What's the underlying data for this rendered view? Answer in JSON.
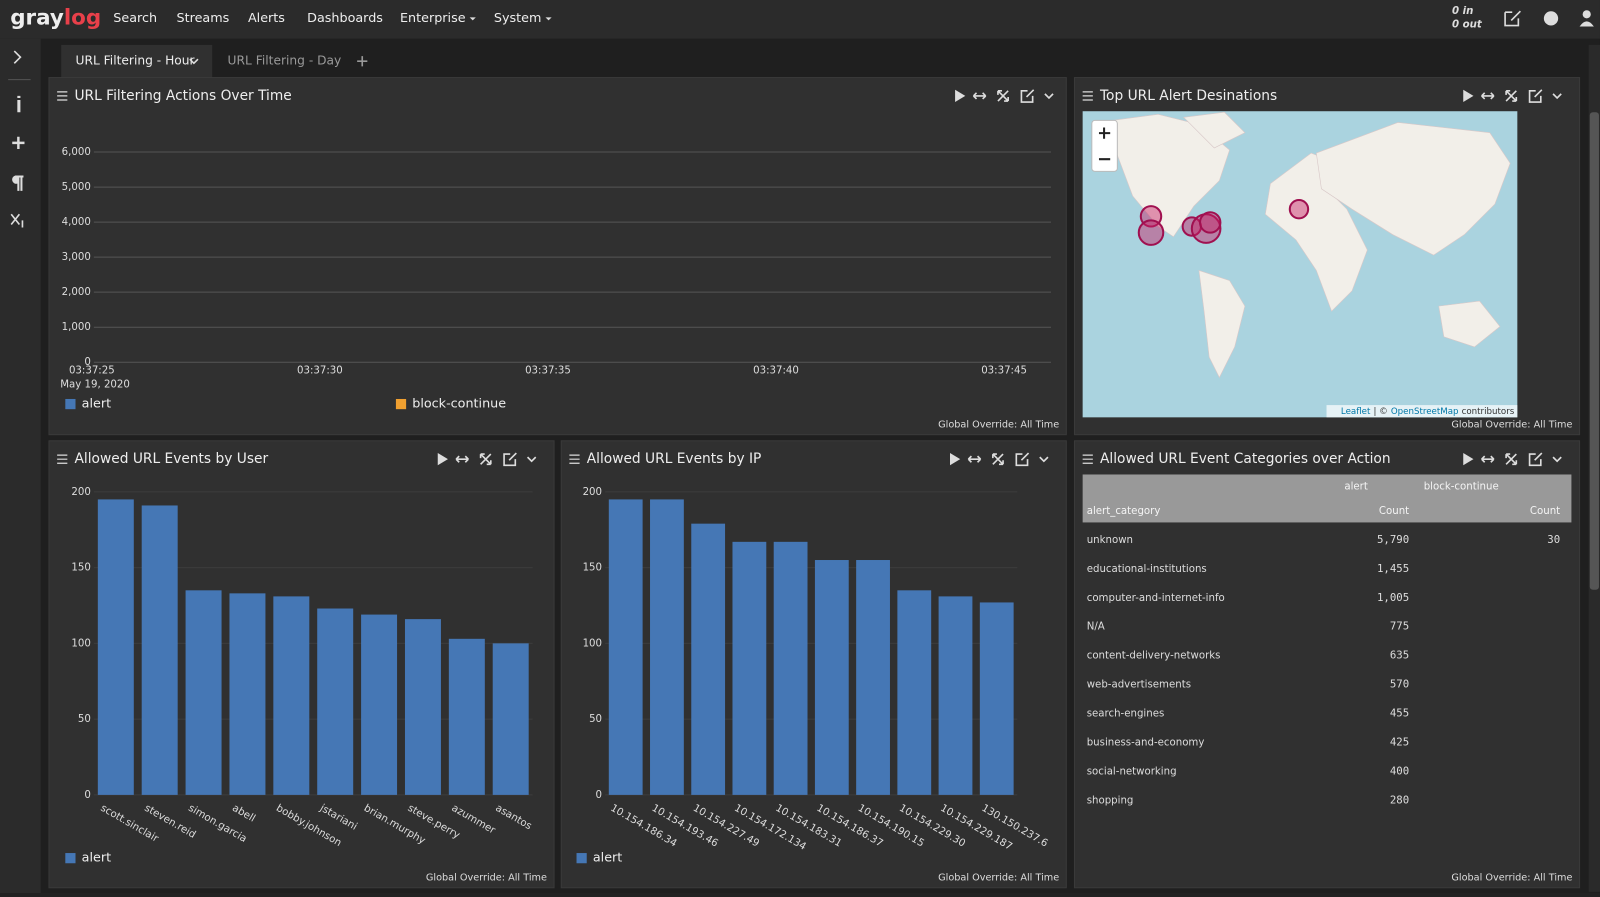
{
  "nav": {
    "logo_a": "gray",
    "logo_b": "log",
    "items": [
      "Search",
      "Streams",
      "Alerts",
      "Dashboards",
      "Enterprise",
      "System"
    ],
    "throughput_in": "0 in",
    "throughput_out": "0 out"
  },
  "tabs": [
    "URL Filtering - Hour",
    "URL Filtering - Day"
  ],
  "chart_data": [
    {
      "type": "line",
      "title": "URL Filtering Actions Over Time",
      "categories": [
        "03:37:25",
        "03:37:30",
        "03:37:35",
        "03:37:40",
        "03:37:45"
      ],
      "date": "May 19, 2020",
      "ylim": [
        0,
        6000
      ],
      "yticks": [
        0,
        {
          "value": 1000,
          "label": "1,000"
        },
        {
          "value": 2000,
          "label": "2,000"
        },
        {
          "value": 3000,
          "label": "3,000"
        },
        {
          "value": 4000,
          "label": "4,000"
        },
        {
          "value": 5000,
          "label": "5,000"
        },
        {
          "value": 6000,
          "label": "6,000"
        }
      ],
      "grid": true,
      "series": [
        {
          "name": "alert",
          "color": "#4577b5"
        },
        {
          "name": "block-continue",
          "color": "#f0a030"
        }
      ],
      "footer": "Global Override: All Time"
    },
    {
      "type": "bar",
      "title": "Allowed URL Events by User",
      "categories": [
        "scott.sinclair",
        "steven.reid",
        "simon.garcia",
        "abell",
        "bobby.johnson",
        "jstariani",
        "brian.murphy",
        "steve.perry",
        "azummer",
        "asantos"
      ],
      "series": [
        {
          "name": "alert",
          "color": "#4577b5",
          "values": [
            195,
            191,
            135,
            133,
            131,
            123,
            119,
            116,
            103,
            100
          ]
        }
      ],
      "ylim": [
        0,
        200
      ],
      "yticks": [
        0,
        50,
        100,
        150,
        200
      ],
      "grid": true,
      "footer": "Global Override: All Time"
    },
    {
      "type": "bar",
      "title": "Allowed URL Events by IP",
      "categories": [
        "10.154.186.34",
        "10.154.193.46",
        "10.154.227.49",
        "10.154.172.134",
        "10.154.183.31",
        "10.154.186.37",
        "10.154.190.15",
        "10.154.229.30",
        "10.154.229.187",
        "130.150.237.6"
      ],
      "series": [
        {
          "name": "alert",
          "color": "#4577b5",
          "values": [
            195,
            195,
            179,
            167,
            167,
            155,
            155,
            135,
            131,
            127
          ]
        }
      ],
      "ylim": [
        0,
        200
      ],
      "yticks": [
        0,
        50,
        100,
        150,
        200
      ],
      "grid": true,
      "footer": "Global Override: All Time"
    }
  ],
  "map_widget": {
    "title": "Top URL Alert Desinations",
    "attribution_a": "Leaflet",
    "attribution_b": "| ©",
    "attribution_c": "OpenStreetMap",
    "attribution_d": "contributors",
    "footer": "Global Override: All Time"
  },
  "table_widget": {
    "title": "Allowed URL Event Categories over Action",
    "group_headers": [
      "alert",
      "block-continue"
    ],
    "columns": [
      "alert_category",
      "Count",
      "Count"
    ],
    "rows": [
      [
        "unknown",
        "5,790",
        "30"
      ],
      [
        "educational-institutions",
        "1,455"
      ],
      [
        "computer-and-internet-info",
        "1,005"
      ],
      [
        "N/A",
        "775"
      ],
      [
        "content-delivery-networks",
        "635"
      ],
      [
        "web-advertisements",
        "570"
      ],
      [
        "search-engines",
        "455"
      ],
      [
        "business-and-economy",
        "425"
      ],
      [
        "social-networking",
        "400"
      ],
      [
        "shopping",
        "280"
      ]
    ],
    "footer": "Global Override: All Time"
  }
}
